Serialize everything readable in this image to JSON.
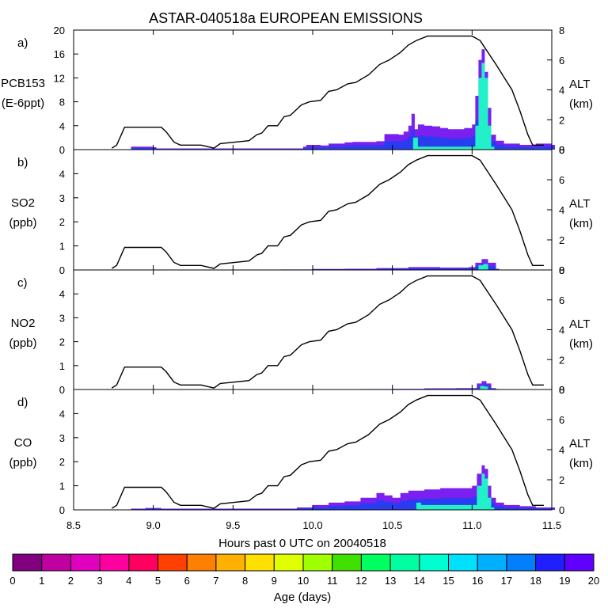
{
  "chart_data": {
    "type": "area",
    "title": "ASTAR-040518a EUROPEAN EMISSIONS",
    "xlabel": "Hours past 0 UTC on 20040518",
    "xlim": [
      8.5,
      11.5
    ],
    "x_ticks": [
      "8.5",
      "9.0",
      "9.5",
      "10.0",
      "10.5",
      "11.0",
      "11.5"
    ],
    "x_tick_values": [
      8.5,
      9.0,
      9.5,
      10.0,
      10.5,
      11.0,
      11.5
    ],
    "altitude": {
      "label_line1": "ALT",
      "label_line2": "(km)",
      "range": [
        0,
        8
      ],
      "ticks": [
        "0",
        "2",
        "4",
        "6",
        "8"
      ],
      "tick_values": [
        0,
        2,
        4,
        6,
        8
      ],
      "profile_x": [
        8.74,
        8.77,
        8.82,
        8.85,
        9.05,
        9.08,
        9.13,
        9.17,
        9.3,
        9.38,
        9.42,
        9.6,
        9.65,
        9.68,
        9.72,
        9.78,
        9.82,
        9.86,
        9.93,
        9.98,
        10.05,
        10.1,
        10.15,
        10.22,
        10.27,
        10.35,
        10.42,
        10.48,
        10.55,
        10.6,
        10.65,
        10.72,
        10.8,
        10.85,
        11.0,
        11.05,
        11.15,
        11.25,
        11.3,
        11.35,
        11.38,
        11.45
      ],
      "profile_km": [
        0.1,
        0.3,
        1.5,
        1.5,
        1.5,
        1.2,
        0.5,
        0.3,
        0.3,
        0.1,
        0.4,
        0.6,
        1.0,
        1.1,
        1.6,
        1.6,
        2.2,
        2.3,
        3.0,
        3.2,
        3.3,
        3.9,
        4.0,
        4.4,
        4.5,
        5.0,
        5.7,
        6.0,
        6.5,
        7.0,
        7.3,
        7.6,
        7.6,
        7.6,
        7.6,
        7.3,
        5.7,
        4.0,
        2.6,
        1.0,
        0.3,
        0.3
      ]
    },
    "panels": [
      {
        "letter": "a)",
        "species": "PCB153",
        "units": "(E-6ppt)",
        "ylim": [
          0,
          20
        ],
        "ticks": [
          "0",
          "4",
          "8",
          "12",
          "16",
          "20"
        ],
        "tick_values": [
          0,
          4,
          8,
          12,
          16,
          20
        ],
        "total_x": [
          8.86,
          8.9,
          8.94,
          8.98,
          9.0,
          9.02,
          9.94,
          9.96,
          10.0,
          10.05,
          10.1,
          10.15,
          10.2,
          10.25,
          10.3,
          10.35,
          10.4,
          10.45,
          10.5,
          10.54,
          10.57,
          10.6,
          10.62,
          10.64,
          10.66,
          10.7,
          10.75,
          10.8,
          10.85,
          10.9,
          10.95,
          11.0,
          11.02,
          11.04,
          11.06,
          11.08,
          11.1,
          11.12,
          11.15,
          11.2,
          11.25,
          11.3,
          11.35,
          11.4,
          11.45,
          11.5
        ],
        "total_y": [
          0.5,
          0.5,
          0.5,
          0.5,
          0.4,
          0.2,
          0.5,
          0.8,
          0.8,
          0.7,
          1.0,
          1.0,
          1.2,
          1.3,
          1.3,
          1.3,
          1.4,
          2.6,
          2.6,
          2.5,
          3.0,
          4.0,
          6.0,
          3.4,
          4.2,
          4.0,
          3.9,
          3.6,
          3.4,
          3.4,
          3.6,
          4.2,
          9.0,
          15.0,
          16.8,
          13.0,
          7.0,
          2.5,
          1.5,
          1.0,
          1.0,
          0.8,
          0.8,
          1.0,
          1.0,
          0.8
        ],
        "core_x": [
          10.6,
          10.63,
          10.66,
          11.0,
          11.02,
          11.04,
          11.06,
          11.08,
          11.1,
          11.12
        ],
        "core_y": [
          0,
          2.0,
          0.5,
          0.5,
          4.0,
          12.0,
          14.5,
          12.0,
          4.0,
          0.5
        ]
      },
      {
        "letter": "b)",
        "species": "SO2",
        "units": "(ppb)",
        "ylim": [
          0,
          5
        ],
        "ticks": [
          "0",
          "1",
          "2",
          "3",
          "4"
        ],
        "tick_values": [
          0,
          1,
          2,
          3,
          4
        ],
        "total_x": [
          9.8,
          10.0,
          10.2,
          10.4,
          10.6,
          10.8,
          10.98,
          11.02,
          11.06,
          11.1,
          11.15
        ],
        "total_y": [
          0.02,
          0.04,
          0.05,
          0.08,
          0.12,
          0.1,
          0.12,
          0.3,
          0.45,
          0.3,
          0.05
        ],
        "core_x": [
          11.0,
          11.04,
          11.07,
          11.1
        ],
        "core_y": [
          0,
          0.2,
          0.25,
          0.0
        ]
      },
      {
        "letter": "c)",
        "species": "NO2",
        "units": "(ppb)",
        "ylim": [
          0,
          5
        ],
        "ticks": [
          "0",
          "1",
          "2",
          "3",
          "4"
        ],
        "tick_values": [
          0,
          1,
          2,
          3,
          4
        ],
        "total_x": [
          10.3,
          10.5,
          10.7,
          10.9,
          11.0,
          11.03,
          11.06,
          11.09,
          11.12,
          11.15
        ],
        "total_y": [
          0.02,
          0.03,
          0.05,
          0.06,
          0.06,
          0.25,
          0.35,
          0.25,
          0.06,
          0.02
        ],
        "core_x": [
          11.02,
          11.05,
          11.08,
          11.1
        ],
        "core_y": [
          0,
          0.15,
          0.12,
          0.0
        ]
      },
      {
        "letter": "d)",
        "species": "CO",
        "units": "(ppb)",
        "ylim": [
          0,
          5
        ],
        "ticks": [
          "0",
          "1",
          "2",
          "3",
          "4"
        ],
        "tick_values": [
          0,
          1,
          2,
          3,
          4
        ],
        "total_x": [
          8.86,
          8.95,
          9.05,
          9.9,
          10.0,
          10.1,
          10.2,
          10.3,
          10.4,
          10.45,
          10.5,
          10.55,
          10.6,
          10.65,
          10.7,
          10.8,
          10.9,
          11.0,
          11.03,
          11.06,
          11.08,
          11.1,
          11.12,
          11.15,
          11.2,
          11.3,
          11.4,
          11.5
        ],
        "total_y": [
          0.05,
          0.08,
          0.05,
          0.1,
          0.2,
          0.3,
          0.35,
          0.5,
          0.7,
          0.6,
          0.5,
          0.7,
          0.8,
          0.8,
          0.85,
          0.9,
          0.9,
          1.0,
          1.5,
          1.85,
          1.7,
          1.0,
          0.5,
          0.3,
          0.2,
          0.15,
          0.1,
          0.1
        ],
        "core_x": [
          10.62,
          10.65,
          10.68,
          11.0,
          11.03,
          11.06,
          11.08,
          11.1,
          11.12
        ],
        "core_y": [
          0,
          0.3,
          0.2,
          0.2,
          1.0,
          1.5,
          1.3,
          0.5,
          0.1
        ]
      }
    ],
    "colorbar": {
      "label": "Age (days)",
      "ticks": [
        "0",
        "1",
        "2",
        "3",
        "4",
        "5",
        "6",
        "7",
        "8",
        "9",
        "10",
        "11",
        "12",
        "13",
        "14",
        "15",
        "16",
        "17",
        "18",
        "19",
        "20"
      ],
      "colors": [
        "#800080",
        "#c000a0",
        "#e000c0",
        "#ff00a0",
        "#ff0060",
        "#ff4000",
        "#ff8000",
        "#ffb000",
        "#ffe000",
        "#e0ff00",
        "#a0ff00",
        "#40e000",
        "#00ff60",
        "#00ffa0",
        "#00ffd0",
        "#00e0ff",
        "#00b0ff",
        "#0080ff",
        "#2020ff",
        "#6000ff"
      ],
      "series_colors": {
        "total": "#7a20f0",
        "mid": "#2a3cf0",
        "core": "#22f0c8"
      }
    }
  }
}
